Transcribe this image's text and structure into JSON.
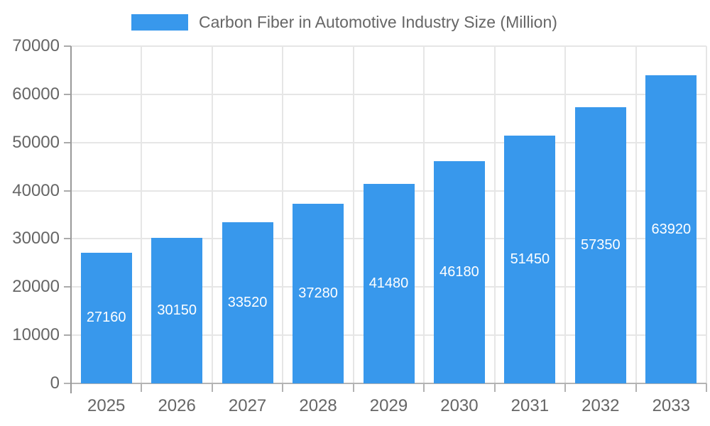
{
  "chart_data": {
    "type": "bar",
    "title": "Carbon Fiber in Automotive Industry Size (Million)",
    "legend": {
      "label": "Carbon Fiber in Automotive Industry Size (Million)",
      "position": "top"
    },
    "categories": [
      "2025",
      "2026",
      "2027",
      "2028",
      "2029",
      "2030",
      "2031",
      "2032",
      "2033"
    ],
    "series": [
      {
        "name": "Carbon Fiber in Automotive Industry Size (Million)",
        "values": [
          27160,
          30150,
          33520,
          37280,
          41480,
          46180,
          51450,
          57350,
          63920
        ]
      }
    ],
    "xlabel": "",
    "ylabel": "",
    "ylim": [
      0,
      70000
    ],
    "yticks": [
      0,
      10000,
      20000,
      30000,
      40000,
      50000,
      60000,
      70000
    ],
    "grid": true,
    "bar_color": "#3898ec",
    "bar_label_color": "#ffffff",
    "axis_text_color": "#666666",
    "gridline_color": "#e6e6e6"
  }
}
